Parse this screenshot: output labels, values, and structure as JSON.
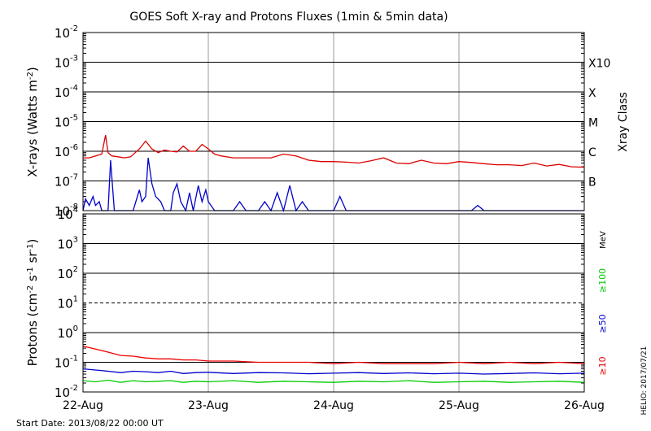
{
  "chart_data": [
    {
      "type": "line",
      "title": "GOES Soft X-ray and Protons Fluxes   (1min & 5min data)",
      "ylabel": "X-rays (Watts m^-2)",
      "y_scale": "log",
      "ylim": [
        1e-08,
        0.01
      ],
      "y_ticks": [
        {
          "base": "10",
          "exp": "-2"
        },
        {
          "base": "10",
          "exp": "-3"
        },
        {
          "base": "10",
          "exp": "-4"
        },
        {
          "base": "10",
          "exp": "-5"
        },
        {
          "base": "10",
          "exp": "-6"
        },
        {
          "base": "10",
          "exp": "-7"
        },
        {
          "base": "10",
          "exp": "-8"
        }
      ],
      "right_axis_label": "Xray Class",
      "class_labels": [
        {
          "label": "X10",
          "flux": 0.001
        },
        {
          "label": "X",
          "flux": 0.0001
        },
        {
          "label": "M",
          "flux": 1e-05
        },
        {
          "label": "C",
          "flux": 1e-06
        },
        {
          "label": "B",
          "flux": 1e-07
        }
      ],
      "grid": true,
      "series": [
        {
          "color": "#dd0000",
          "x_days": [
            0.0,
            0.05,
            0.1,
            0.15,
            0.18,
            0.2,
            0.23,
            0.28,
            0.33,
            0.38,
            0.45,
            0.5,
            0.55,
            0.6,
            0.65,
            0.7,
            0.75,
            0.8,
            0.85,
            0.9,
            0.95,
            1.0,
            1.05,
            1.1,
            1.2,
            1.3,
            1.4,
            1.5,
            1.6,
            1.7,
            1.8,
            1.9,
            2.0,
            2.1,
            2.2,
            2.3,
            2.4,
            2.5,
            2.6,
            2.7,
            2.8,
            2.9,
            3.0,
            3.1,
            3.2,
            3.3,
            3.4,
            3.5,
            3.6,
            3.7,
            3.8,
            3.9,
            4.0
          ],
          "values": [
            6e-07,
            6e-07,
            7e-07,
            8e-07,
            3.5e-06,
            9e-07,
            7e-07,
            6.5e-07,
            6e-07,
            6.5e-07,
            1.2e-06,
            2.2e-06,
            1.2e-06,
            9e-07,
            1.1e-06,
            1e-06,
            9.5e-07,
            1.5e-06,
            1e-06,
            1e-06,
            1.7e-06,
            1.2e-06,
            8e-07,
            7e-07,
            6e-07,
            6e-07,
            6e-07,
            6e-07,
            8e-07,
            7e-07,
            5e-07,
            4.5e-07,
            4.5e-07,
            4.3e-07,
            4e-07,
            4.8e-07,
            6e-07,
            4e-07,
            3.8e-07,
            5e-07,
            4e-07,
            3.8e-07,
            4.5e-07,
            4.2e-07,
            3.8e-07,
            3.5e-07,
            3.5e-07,
            3.3e-07,
            4e-07,
            3.2e-07,
            3.6e-07,
            3e-07,
            2.9e-07
          ]
        },
        {
          "color": "#0000cc",
          "x_days": [
            0.0,
            0.02,
            0.05,
            0.08,
            0.1,
            0.13,
            0.15,
            0.2,
            0.22,
            0.25,
            0.28,
            0.35,
            0.4,
            0.45,
            0.47,
            0.5,
            0.52,
            0.55,
            0.58,
            0.62,
            0.65,
            0.68,
            0.7,
            0.72,
            0.75,
            0.78,
            0.82,
            0.85,
            0.88,
            0.92,
            0.95,
            0.98,
            1.0,
            1.05,
            1.1,
            1.2,
            1.25,
            1.3,
            1.35,
            1.4,
            1.45,
            1.5,
            1.55,
            1.6,
            1.65,
            1.7,
            1.75,
            1.8,
            1.9,
            2.0,
            2.05,
            2.1,
            2.15,
            2.2,
            2.3,
            2.4,
            2.5,
            2.6,
            2.7,
            2.8,
            2.9,
            3.0,
            3.1,
            3.15,
            3.2,
            3.3,
            3.4,
            3.5,
            3.6,
            3.7,
            3.8,
            3.9,
            4.0
          ],
          "values": [
            1e-08,
            2.5e-08,
            1.5e-08,
            3e-08,
            1.5e-08,
            2e-08,
            1e-08,
            1e-08,
            5e-07,
            1e-08,
            1e-08,
            1e-08,
            1e-08,
            5e-08,
            2e-08,
            3e-08,
            6e-07,
            8e-08,
            3e-08,
            2e-08,
            1e-08,
            1e-08,
            1e-08,
            4e-08,
            8e-08,
            2e-08,
            1e-08,
            4e-08,
            1e-08,
            7e-08,
            2e-08,
            5e-08,
            2e-08,
            1e-08,
            1e-08,
            1e-08,
            2e-08,
            1e-08,
            1e-08,
            1e-08,
            2e-08,
            1e-08,
            4e-08,
            1e-08,
            7e-08,
            1e-08,
            2e-08,
            1e-08,
            1e-08,
            1e-08,
            3e-08,
            1e-08,
            1e-08,
            1e-08,
            1e-08,
            1e-08,
            1e-08,
            1e-08,
            1e-08,
            1e-08,
            1e-08,
            1e-08,
            1e-08,
            1.5e-08,
            1e-08,
            1e-08,
            1e-08,
            1e-08,
            1e-08,
            1e-08,
            1e-08,
            1e-08,
            1e-08
          ]
        }
      ]
    },
    {
      "type": "line",
      "ylabel": "Protons (cm^-2 s^-1 sr^-1)",
      "y_scale": "log",
      "ylim": [
        0.01,
        10000
      ],
      "y_ticks": [
        {
          "base": "10",
          "exp": "4"
        },
        {
          "base": "10",
          "exp": "3"
        },
        {
          "base": "10",
          "exp": "2"
        },
        {
          "base": "10",
          "exp": "1"
        },
        {
          "base": "10",
          "exp": "0"
        },
        {
          "base": "10",
          "exp": "-1"
        },
        {
          "base": "10",
          "exp": "-2"
        }
      ],
      "unit_label": "MeV",
      "threshold_line": 10,
      "grid": true,
      "series": [
        {
          "name": "≥100",
          "color": "#00cc00",
          "x_days": [
            0.0,
            0.1,
            0.2,
            0.3,
            0.4,
            0.5,
            0.6,
            0.7,
            0.8,
            0.9,
            1.0,
            1.2,
            1.4,
            1.6,
            1.8,
            2.0,
            2.2,
            2.4,
            2.6,
            2.8,
            3.0,
            3.2,
            3.4,
            3.6,
            3.8,
            4.0
          ],
          "values": [
            0.024,
            0.022,
            0.025,
            0.021,
            0.024,
            0.022,
            0.023,
            0.024,
            0.021,
            0.023,
            0.022,
            0.024,
            0.021,
            0.023,
            0.022,
            0.021,
            0.023,
            0.022,
            0.024,
            0.021,
            0.022,
            0.023,
            0.021,
            0.022,
            0.023,
            0.021
          ]
        },
        {
          "name": "≥50",
          "color": "#0000cc",
          "x_days": [
            0.0,
            0.1,
            0.2,
            0.3,
            0.4,
            0.5,
            0.6,
            0.7,
            0.8,
            0.9,
            1.0,
            1.2,
            1.4,
            1.6,
            1.8,
            2.0,
            2.2,
            2.4,
            2.6,
            2.8,
            3.0,
            3.2,
            3.4,
            3.6,
            3.8,
            4.0
          ],
          "values": [
            0.06,
            0.055,
            0.05,
            0.045,
            0.05,
            0.048,
            0.045,
            0.05,
            0.042,
            0.045,
            0.046,
            0.042,
            0.045,
            0.044,
            0.041,
            0.043,
            0.045,
            0.042,
            0.044,
            0.041,
            0.043,
            0.04,
            0.042,
            0.044,
            0.041,
            0.043
          ]
        },
        {
          "name": "≥10",
          "color": "#ee0000",
          "x_days": [
            0.0,
            0.1,
            0.2,
            0.3,
            0.4,
            0.5,
            0.6,
            0.7,
            0.8,
            0.9,
            1.0,
            1.2,
            1.4,
            1.6,
            1.8,
            2.0,
            2.2,
            2.4,
            2.6,
            2.8,
            3.0,
            3.2,
            3.4,
            3.6,
            3.8,
            4.0
          ],
          "values": [
            0.35,
            0.28,
            0.22,
            0.17,
            0.16,
            0.14,
            0.13,
            0.13,
            0.12,
            0.12,
            0.11,
            0.11,
            0.1,
            0.1,
            0.1,
            0.09,
            0.1,
            0.09,
            0.09,
            0.09,
            0.1,
            0.09,
            0.1,
            0.09,
            0.1,
            0.09
          ]
        }
      ]
    }
  ],
  "x_axis": {
    "tick_labels": [
      "22-Aug",
      "23-Aug",
      "24-Aug",
      "25-Aug",
      "26-Aug"
    ]
  },
  "footer": {
    "start_date": "Start Date: 2013/08/22 00:00 UT",
    "credit": "HELIO: 2017/07/21"
  }
}
